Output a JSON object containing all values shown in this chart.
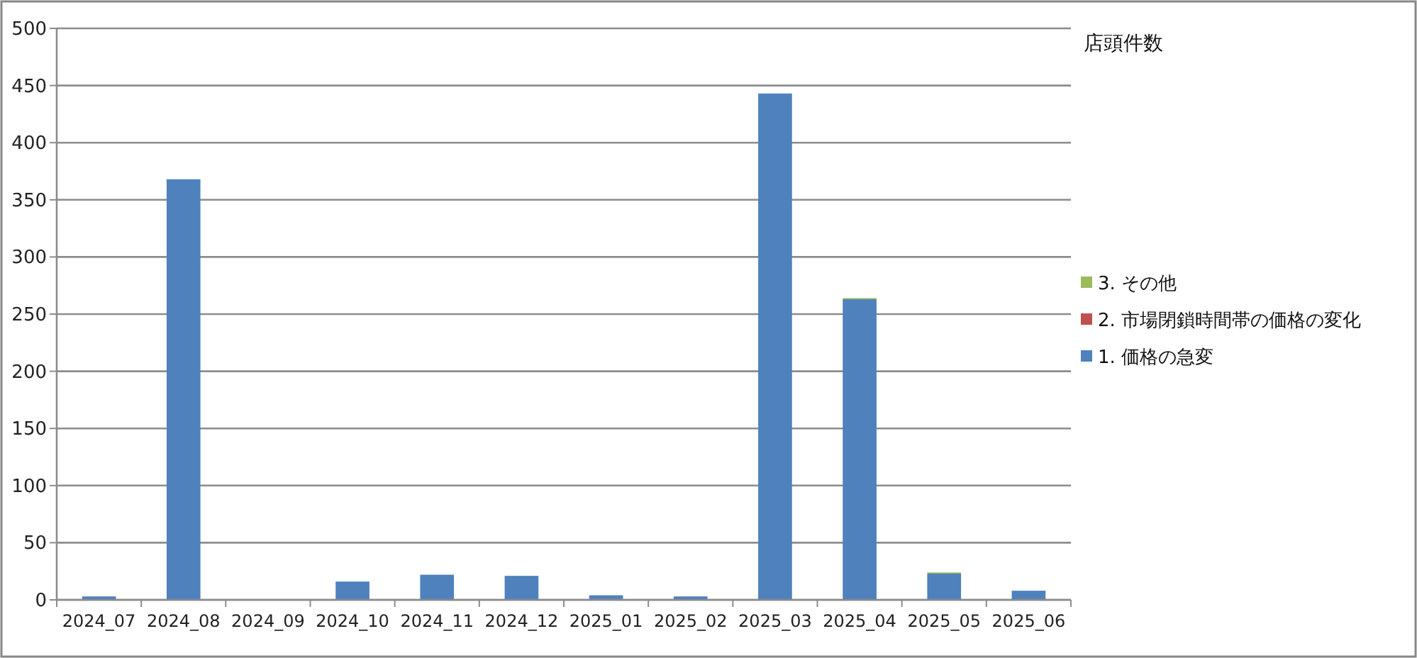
{
  "chart_data": {
    "type": "bar",
    "stacked": true,
    "legend_title": "店頭件数",
    "categories": [
      "2024_07",
      "2024_08",
      "2024_09",
      "2024_10",
      "2024_11",
      "2024_12",
      "2025_01",
      "2025_02",
      "2025_03",
      "2025_04",
      "2025_05",
      "2025_06"
    ],
    "series": [
      {
        "name": "1. 価格の急変",
        "color": "#4f81bd",
        "values": [
          3,
          368,
          0,
          16,
          22,
          21,
          4,
          3,
          443,
          263,
          23,
          8
        ]
      },
      {
        "name": "2. 市場閉鎖時間帯の価格の変化",
        "color": "#c0504d",
        "values": [
          0,
          0,
          0,
          0,
          0,
          0,
          0,
          0,
          0,
          0,
          0,
          0
        ]
      },
      {
        "name": "3. その他",
        "color": "#9bbb59",
        "values": [
          0,
          0,
          0,
          0,
          0,
          0,
          0,
          0,
          0,
          1,
          1,
          0
        ]
      }
    ],
    "ylim": [
      0,
      500
    ],
    "yticks": [
      0,
      50,
      100,
      150,
      200,
      250,
      300,
      350,
      400,
      450,
      500
    ],
    "grid": "y",
    "legend": "right"
  }
}
